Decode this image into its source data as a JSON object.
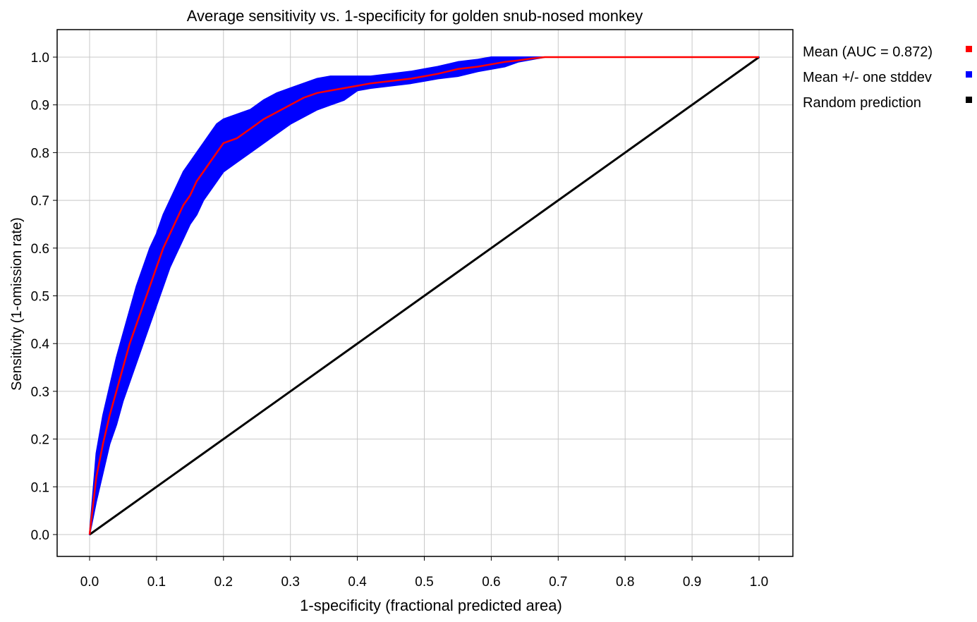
{
  "chart_data": {
    "type": "line",
    "title": "Average sensitivity vs. 1-specificity for golden snub-nosed monkey",
    "xlabel": "1-specificity (fractional predicted area)",
    "ylabel": "Sensitivity (1-omission rate)",
    "xlim": [
      0,
      1
    ],
    "ylim": [
      0,
      1
    ],
    "grid": true,
    "legend_position": "right",
    "x_ticks": [
      "0.0",
      "0.1",
      "0.2",
      "0.3",
      "0.4",
      "0.5",
      "0.6",
      "0.7",
      "0.8",
      "0.9",
      "1.0"
    ],
    "y_ticks": [
      "0.0",
      "0.1",
      "0.2",
      "0.3",
      "0.4",
      "0.5",
      "0.6",
      "0.7",
      "0.8",
      "0.9",
      "1.0"
    ],
    "series": [
      {
        "name": "Mean (AUC = 0.872)",
        "color": "#ff0000",
        "x": [
          0,
          0.01,
          0.02,
          0.03,
          0.04,
          0.05,
          0.06,
          0.07,
          0.08,
          0.09,
          0.1,
          0.11,
          0.12,
          0.13,
          0.14,
          0.15,
          0.16,
          0.17,
          0.18,
          0.19,
          0.2,
          0.22,
          0.24,
          0.26,
          0.28,
          0.3,
          0.32,
          0.34,
          0.36,
          0.38,
          0.4,
          0.42,
          0.45,
          0.48,
          0.5,
          0.52,
          0.55,
          0.58,
          0.6,
          0.62,
          0.64,
          0.66,
          0.68,
          0.7,
          0.8,
          0.9,
          1.0
        ],
        "y": [
          0,
          0.12,
          0.19,
          0.25,
          0.3,
          0.35,
          0.4,
          0.44,
          0.48,
          0.52,
          0.56,
          0.6,
          0.63,
          0.66,
          0.69,
          0.71,
          0.74,
          0.76,
          0.78,
          0.8,
          0.82,
          0.83,
          0.85,
          0.87,
          0.885,
          0.9,
          0.915,
          0.925,
          0.93,
          0.935,
          0.94,
          0.945,
          0.95,
          0.955,
          0.96,
          0.965,
          0.975,
          0.98,
          0.985,
          0.99,
          0.993,
          0.997,
          1.0,
          1.0,
          1.0,
          1.0,
          1.0
        ]
      },
      {
        "name": "Mean +/- one stddev",
        "color": "#0000ff",
        "x": [
          0,
          0.01,
          0.02,
          0.03,
          0.04,
          0.05,
          0.06,
          0.07,
          0.08,
          0.09,
          0.1,
          0.11,
          0.12,
          0.13,
          0.14,
          0.15,
          0.16,
          0.17,
          0.18,
          0.19,
          0.2,
          0.22,
          0.24,
          0.26,
          0.28,
          0.3,
          0.32,
          0.34,
          0.36,
          0.38,
          0.4,
          0.42,
          0.45,
          0.48,
          0.5,
          0.52,
          0.55,
          0.58,
          0.6,
          0.62,
          0.64,
          0.66,
          0.68,
          0.7,
          0.8,
          0.9,
          1.0
        ],
        "lower": [
          0,
          0.07,
          0.13,
          0.19,
          0.23,
          0.28,
          0.32,
          0.36,
          0.4,
          0.44,
          0.48,
          0.52,
          0.56,
          0.59,
          0.62,
          0.65,
          0.67,
          0.7,
          0.72,
          0.74,
          0.76,
          0.78,
          0.8,
          0.82,
          0.84,
          0.86,
          0.875,
          0.89,
          0.9,
          0.91,
          0.93,
          0.935,
          0.94,
          0.945,
          0.95,
          0.955,
          0.96,
          0.97,
          0.975,
          0.98,
          0.99,
          0.995,
          1.0,
          1.0,
          1.0,
          1.0,
          1.0
        ],
        "upper": [
          0,
          0.17,
          0.25,
          0.31,
          0.37,
          0.42,
          0.47,
          0.52,
          0.56,
          0.6,
          0.63,
          0.67,
          0.7,
          0.73,
          0.76,
          0.78,
          0.8,
          0.82,
          0.84,
          0.86,
          0.87,
          0.88,
          0.89,
          0.91,
          0.925,
          0.935,
          0.945,
          0.955,
          0.96,
          0.96,
          0.96,
          0.96,
          0.965,
          0.97,
          0.975,
          0.98,
          0.99,
          0.995,
          1.0,
          1.0,
          1.0,
          1.0,
          1.0,
          1.0,
          1.0,
          1.0,
          1.0
        ]
      },
      {
        "name": "Random prediction",
        "color": "#000000",
        "x": [
          0,
          1
        ],
        "y": [
          0,
          1
        ]
      }
    ]
  }
}
